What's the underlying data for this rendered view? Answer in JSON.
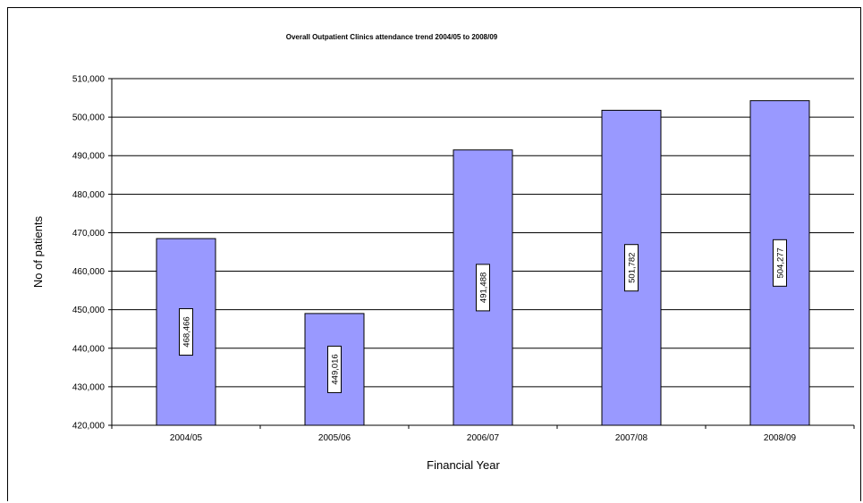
{
  "chart_data": {
    "type": "bar",
    "title": "Overall Outpatient Clinics attendance trend 2004/05  to 2008/09",
    "xlabel": "Financial Year",
    "ylabel": "No of patients",
    "categories": [
      "2004/05",
      "2005/06",
      "2006/07",
      "2007/08",
      "2008/09"
    ],
    "values": [
      468466,
      449016,
      491488,
      501782,
      504277
    ],
    "value_labels": [
      "468,466",
      "449,016",
      "491,488",
      "501,782",
      "504,277"
    ],
    "ylim": [
      420000,
      510000
    ],
    "yticks": [
      420000,
      430000,
      440000,
      450000,
      460000,
      470000,
      480000,
      490000,
      500000,
      510000
    ],
    "ytick_labels": [
      "420,000",
      "430,000",
      "440,000",
      "450,000",
      "460,000",
      "470,000",
      "480,000",
      "490,000",
      "500,000",
      "510,000"
    ],
    "grid": true,
    "legend": "none",
    "bar_color": "#9999ff",
    "bar_edge_color": "#000000"
  }
}
